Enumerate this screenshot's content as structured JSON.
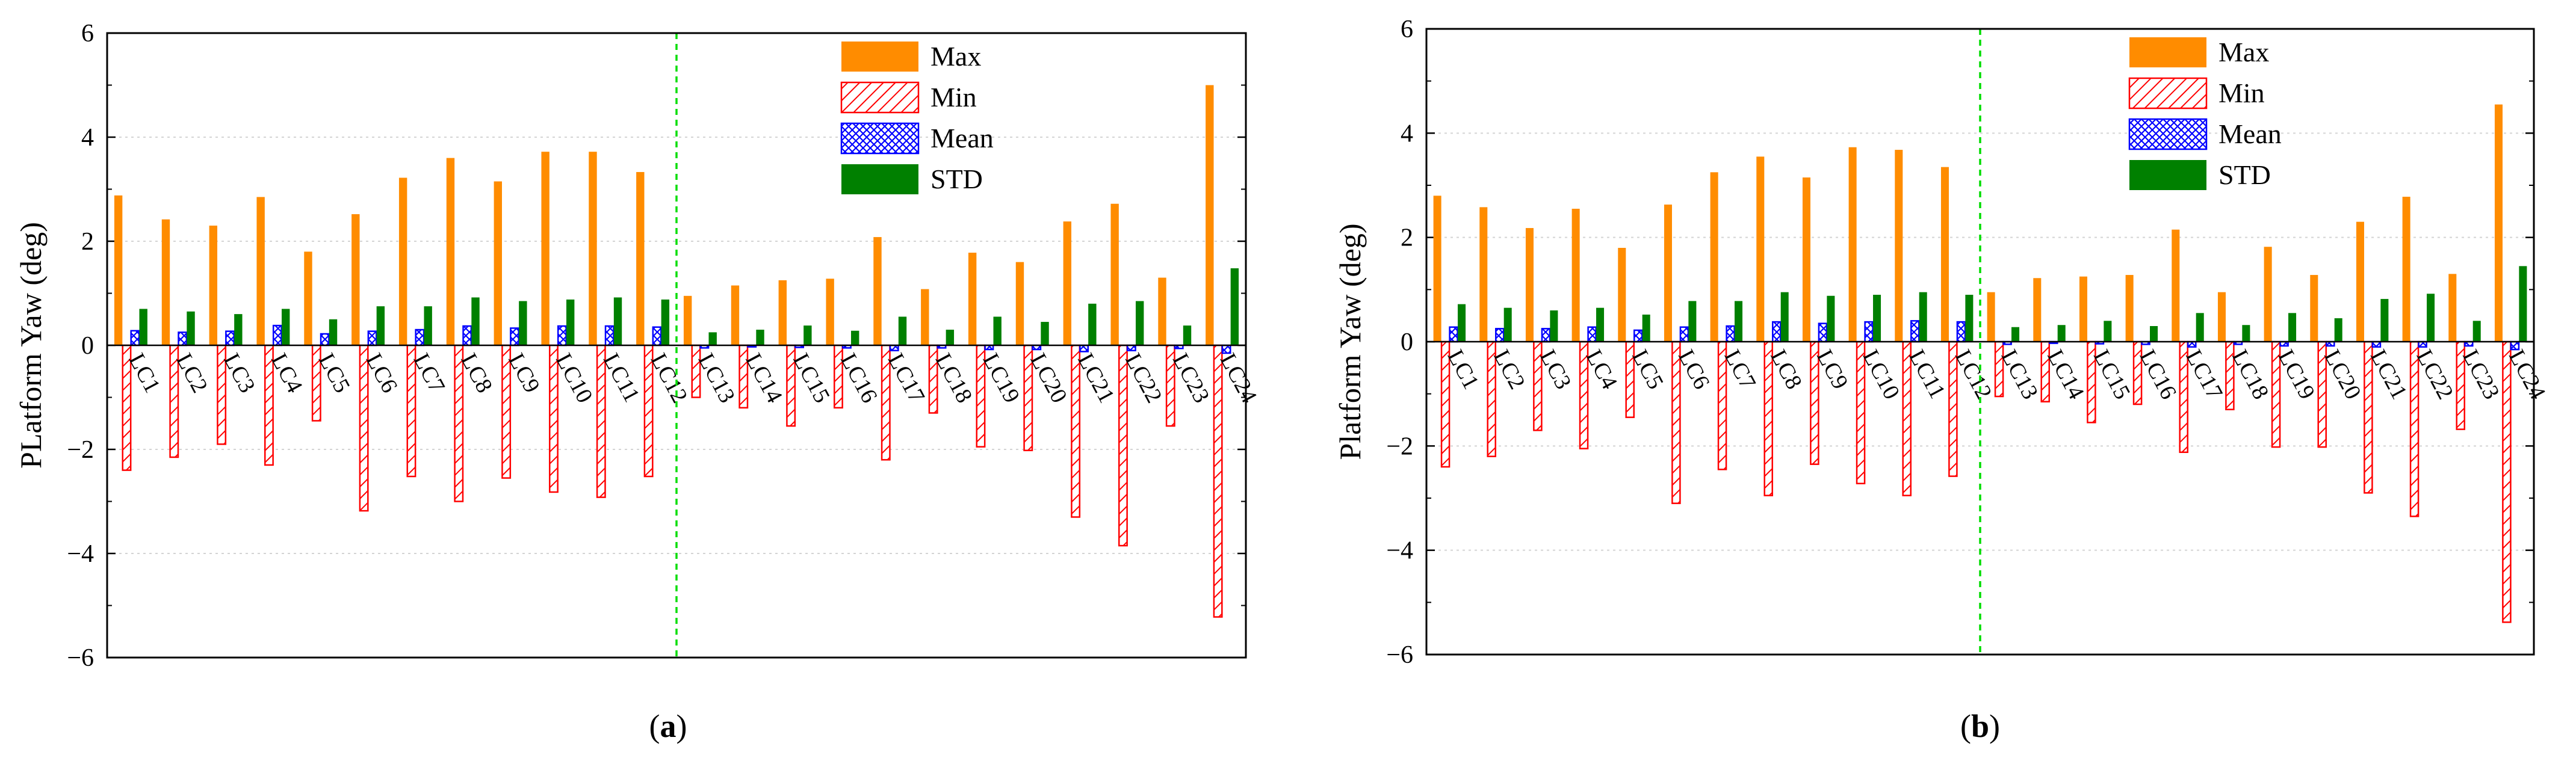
{
  "colors": {
    "max": "#ff8c00",
    "min": "#ff0000",
    "mean": "#0000ff",
    "std": "#008000",
    "divider": "#00dd00"
  },
  "legend": {
    "max": "Max",
    "min": "Min",
    "mean": "Mean",
    "std": "STD"
  },
  "chart_data": [
    {
      "type": "bar",
      "panel_label": "a",
      "ylabel": "PLatform Yaw (deg)",
      "ylim": [
        -6,
        6
      ],
      "yticks": [
        -6,
        -4,
        -2,
        0,
        2,
        4,
        6
      ],
      "divider_after_category": "LC12",
      "legend_position": "top-right",
      "categories": [
        "LC1",
        "LC2",
        "LC3",
        "LC4",
        "LC5",
        "LC6",
        "LC7",
        "LC8",
        "LC9",
        "LC10",
        "LC11",
        "LC12",
        "LC13",
        "LC14",
        "LC15",
        "LC16",
        "LC17",
        "LC18",
        "LC19",
        "LC20",
        "LC21",
        "LC22",
        "LC23",
        "LC24"
      ],
      "series": [
        {
          "name": "Max",
          "values": [
            2.88,
            2.42,
            2.3,
            2.85,
            1.8,
            2.52,
            3.22,
            3.6,
            3.15,
            3.72,
            3.72,
            3.33,
            0.95,
            1.15,
            1.25,
            1.28,
            2.08,
            1.08,
            1.78,
            1.6,
            2.38,
            2.72,
            1.3,
            5.0
          ]
        },
        {
          "name": "Min",
          "values": [
            -2.4,
            -2.15,
            -1.9,
            -2.3,
            -1.45,
            -3.18,
            -2.52,
            -3.0,
            -2.55,
            -2.82,
            -2.92,
            -2.52,
            -1.0,
            -1.2,
            -1.55,
            -1.2,
            -2.2,
            -1.3,
            -1.95,
            -2.02,
            -3.3,
            -3.85,
            -1.55,
            -5.22
          ]
        },
        {
          "name": "Mean",
          "values": [
            0.28,
            0.25,
            0.27,
            0.38,
            0.22,
            0.27,
            0.3,
            0.37,
            0.33,
            0.37,
            0.37,
            0.35,
            -0.05,
            -0.03,
            -0.04,
            -0.05,
            -0.1,
            -0.05,
            -0.08,
            -0.08,
            -0.12,
            -0.1,
            -0.06,
            -0.15
          ]
        },
        {
          "name": "STD",
          "values": [
            0.7,
            0.65,
            0.6,
            0.7,
            0.5,
            0.75,
            0.75,
            0.92,
            0.85,
            0.88,
            0.92,
            0.88,
            0.25,
            0.3,
            0.38,
            0.28,
            0.55,
            0.3,
            0.55,
            0.45,
            0.8,
            0.85,
            0.38,
            1.48
          ]
        }
      ]
    },
    {
      "type": "bar",
      "panel_label": "b",
      "ylabel": "Platform Yaw (deg)",
      "ylim": [
        -6,
        6
      ],
      "yticks": [
        -6,
        -4,
        -2,
        0,
        2,
        4,
        6
      ],
      "divider_after_category": "LC12",
      "legend_position": "top-right",
      "categories": [
        "LC1",
        "LC2",
        "LC3",
        "LC4",
        "LC5",
        "LC6",
        "LC7",
        "LC8",
        "LC9",
        "LC10",
        "LC11",
        "LC12",
        "LC13",
        "LC14",
        "LC15",
        "LC16",
        "LC17",
        "LC18",
        "LC19",
        "LC20",
        "LC21",
        "LC22",
        "LC23",
        "LC24"
      ],
      "series": [
        {
          "name": "Max",
          "values": [
            2.8,
            2.58,
            2.18,
            2.55,
            1.8,
            2.63,
            3.25,
            3.55,
            3.15,
            3.73,
            3.68,
            3.35,
            0.95,
            1.22,
            1.25,
            1.28,
            2.15,
            0.95,
            1.82,
            1.28,
            2.3,
            2.78,
            1.3,
            4.55
          ]
        },
        {
          "name": "Min",
          "values": [
            -2.4,
            -2.2,
            -1.7,
            -2.05,
            -1.45,
            -3.1,
            -2.45,
            -2.95,
            -2.35,
            -2.72,
            -2.95,
            -2.58,
            -1.05,
            -1.15,
            -1.55,
            -1.2,
            -2.12,
            -1.3,
            -2.02,
            -2.02,
            -2.9,
            -3.35,
            -1.68,
            -5.38
          ]
        },
        {
          "name": "Mean",
          "values": [
            0.28,
            0.25,
            0.25,
            0.28,
            0.22,
            0.28,
            0.3,
            0.38,
            0.35,
            0.38,
            0.4,
            0.38,
            -0.05,
            -0.03,
            -0.04,
            -0.05,
            -0.1,
            -0.05,
            -0.08,
            -0.08,
            -0.1,
            -0.1,
            -0.08,
            -0.15
          ]
        },
        {
          "name": "STD",
          "values": [
            0.72,
            0.65,
            0.6,
            0.65,
            0.52,
            0.78,
            0.78,
            0.95,
            0.88,
            0.9,
            0.95,
            0.9,
            0.28,
            0.32,
            0.4,
            0.3,
            0.55,
            0.32,
            0.55,
            0.45,
            0.82,
            0.92,
            0.4,
            1.45
          ]
        }
      ]
    }
  ]
}
